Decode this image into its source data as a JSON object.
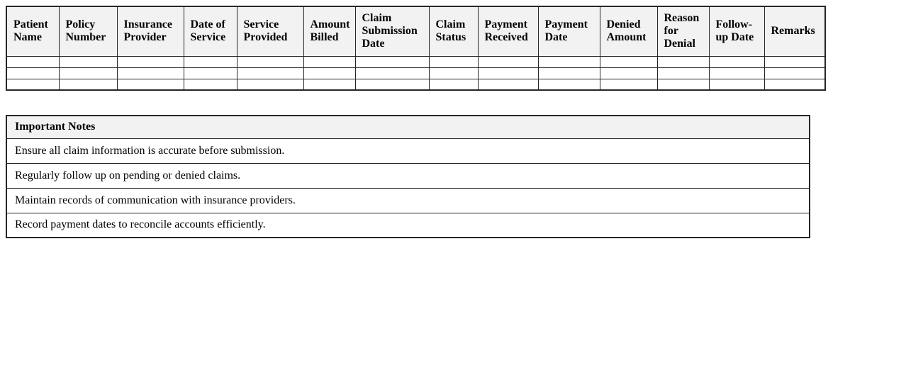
{
  "claims_table": {
    "headers": [
      "Patient Name",
      "Policy Number",
      "Insurance Provider",
      "Date of Service",
      "Service Provided",
      "Amount Billed",
      "Claim Submission Date",
      "Claim Status",
      "Payment Received",
      "Payment Date",
      "Denied Amount",
      "Reason for Denial",
      "Follow-up Date",
      "Remarks"
    ],
    "empty_row_count": 3
  },
  "notes": {
    "title": "Important Notes",
    "items": [
      "Ensure all claim information is accurate before submission.",
      "Regularly follow up on pending or denied claims.",
      "Maintain records of communication with insurance providers.",
      "Record payment dates to reconcile accounts efficiently."
    ]
  },
  "colors": {
    "header_bg": "#f2f2f2",
    "border": "#262626",
    "page_bg": "#ffffff",
    "text": "#000000"
  }
}
